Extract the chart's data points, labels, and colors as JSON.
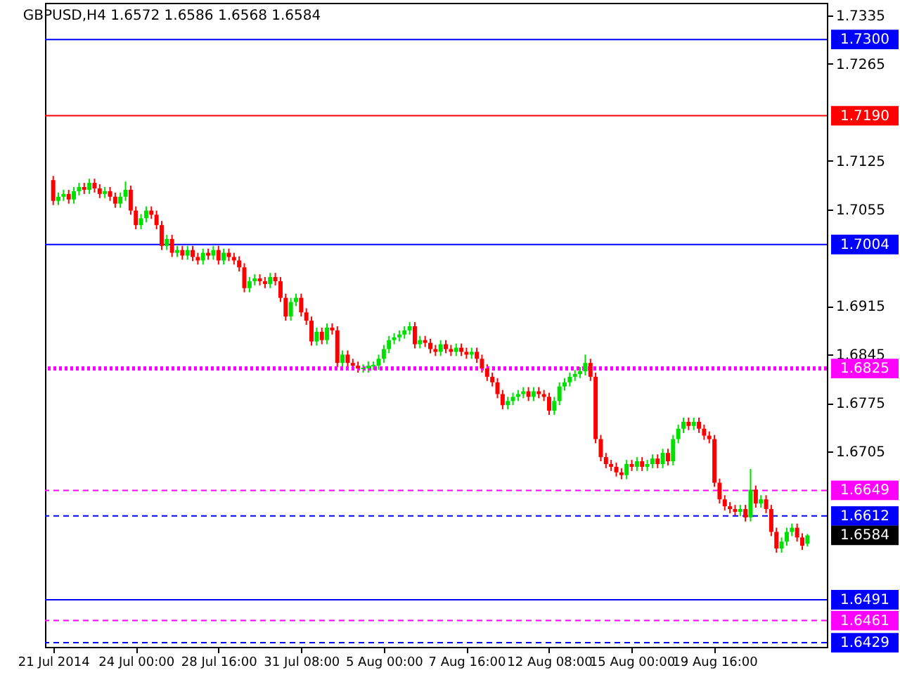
{
  "chart_data": {
    "type": "candlestick",
    "title": "GBPUSD,H4  1.6572 1.6586 1.6568 1.6584",
    "categories": [
      "21 Jul 2014",
      null,
      null,
      null,
      null,
      null,
      null,
      null,
      null,
      null,
      null,
      null,
      null,
      null,
      null,
      null,
      "24 Jul 00:00",
      null,
      null,
      null,
      null,
      null,
      null,
      null,
      null,
      null,
      null,
      null,
      null,
      null,
      null,
      null,
      "28 Jul 16:00",
      null,
      null,
      null,
      null,
      null,
      null,
      null,
      null,
      null,
      null,
      null,
      null,
      null,
      null,
      null,
      "31 Jul 08:00",
      null,
      null,
      null,
      null,
      null,
      null,
      null,
      null,
      null,
      null,
      null,
      null,
      null,
      null,
      null,
      "5 Aug 00:00",
      null,
      null,
      null,
      null,
      null,
      null,
      null,
      null,
      null,
      null,
      null,
      null,
      null,
      null,
      null,
      "7 Aug 16:00",
      null,
      null,
      null,
      null,
      null,
      null,
      null,
      null,
      null,
      null,
      null,
      null,
      null,
      null,
      null,
      "12 Aug 08:00",
      null,
      null,
      null,
      null,
      null,
      null,
      null,
      null,
      null,
      null,
      null,
      null,
      null,
      null,
      null,
      "15 Aug 00:00",
      null,
      null,
      null,
      null,
      null,
      null,
      null,
      null,
      null,
      null,
      null,
      null,
      null,
      null,
      null,
      "19 Aug 16:00",
      null,
      null,
      null,
      null,
      null,
      null,
      null,
      null,
      null,
      null,
      null,
      null,
      null,
      null,
      null,
      null,
      null,
      null
    ],
    "ohlc": [
      [
        1.7097,
        1.7103,
        1.7061,
        1.7067
      ],
      [
        1.7067,
        1.7079,
        1.7061,
        1.7073
      ],
      [
        1.7073,
        1.7083,
        1.7067,
        1.7077
      ],
      [
        1.7077,
        1.7083,
        1.7063,
        1.7069
      ],
      [
        1.7069,
        1.7087,
        1.7063,
        1.7081
      ],
      [
        1.7081,
        1.7093,
        1.7075,
        1.7087
      ],
      [
        1.7087,
        1.7093,
        1.7077,
        1.7083
      ],
      [
        1.7083,
        1.7099,
        1.7077,
        1.7093
      ],
      [
        1.7093,
        1.7099,
        1.7079,
        1.7085
      ],
      [
        1.7085,
        1.7091,
        1.7071,
        1.7077
      ],
      [
        1.7077,
        1.7087,
        1.7071,
        1.7081
      ],
      [
        1.7081,
        1.7087,
        1.7067,
        1.7073
      ],
      [
        1.7073,
        1.7079,
        1.7057,
        1.7063
      ],
      [
        1.7063,
        1.7079,
        1.7057,
        1.7073
      ],
      [
        1.7073,
        1.7095,
        1.7067,
        1.7083
      ],
      [
        1.7083,
        1.7089,
        1.7047,
        1.7053
      ],
      [
        1.7053,
        1.7059,
        1.7026,
        1.7032
      ],
      [
        1.7032,
        1.7048,
        1.7026,
        1.7042
      ],
      [
        1.7042,
        1.7059,
        1.7036,
        1.7053
      ],
      [
        1.7053,
        1.7059,
        1.7041,
        1.7047
      ],
      [
        1.7047,
        1.7053,
        1.7026,
        1.7032
      ],
      [
        1.7032,
        1.7038,
        1.6996,
        1.7002
      ],
      [
        1.7002,
        1.7018,
        1.6996,
        1.7012
      ],
      [
        1.7012,
        1.7018,
        1.6986,
        1.6992
      ],
      [
        1.6992,
        1.7002,
        1.6986,
        1.6996
      ],
      [
        1.6996,
        1.7002,
        1.6982,
        1.6988
      ],
      [
        1.6988,
        1.7002,
        1.6982,
        1.6996
      ],
      [
        1.6996,
        1.7002,
        1.698,
        1.6986
      ],
      [
        1.6986,
        1.6992,
        1.6975,
        1.6981
      ],
      [
        1.6981,
        1.6998,
        1.6975,
        1.6992
      ],
      [
        1.6992,
        1.6998,
        1.6982,
        1.6988
      ],
      [
        1.6988,
        1.7002,
        1.6982,
        1.6996
      ],
      [
        1.6996,
        1.7002,
        1.6975,
        1.6981
      ],
      [
        1.6981,
        1.6998,
        1.6975,
        1.6992
      ],
      [
        1.6992,
        1.6998,
        1.698,
        1.6986
      ],
      [
        1.6986,
        1.6992,
        1.6975,
        1.6981
      ],
      [
        1.6981,
        1.6987,
        1.6965,
        1.6971
      ],
      [
        1.6971,
        1.6977,
        1.6935,
        1.6941
      ],
      [
        1.6941,
        1.6957,
        1.6935,
        1.6951
      ],
      [
        1.6951,
        1.6961,
        1.6945,
        1.6955
      ],
      [
        1.6955,
        1.6961,
        1.6945,
        1.6951
      ],
      [
        1.6951,
        1.6957,
        1.6941,
        1.6947
      ],
      [
        1.6947,
        1.6963,
        1.6941,
        1.6957
      ],
      [
        1.6957,
        1.6963,
        1.6945,
        1.6951
      ],
      [
        1.6951,
        1.6957,
        1.6921,
        1.6927
      ],
      [
        1.6927,
        1.6933,
        1.6894,
        1.69
      ],
      [
        1.69,
        1.6927,
        1.6894,
        1.6921
      ],
      [
        1.6921,
        1.6933,
        1.6915,
        1.6927
      ],
      [
        1.6927,
        1.6933,
        1.69,
        1.6906
      ],
      [
        1.6906,
        1.6912,
        1.6888,
        1.6894
      ],
      [
        1.6894,
        1.69,
        1.6858,
        1.6864
      ],
      [
        1.6864,
        1.6884,
        1.6858,
        1.6878
      ],
      [
        1.6878,
        1.6884,
        1.686,
        1.6866
      ],
      [
        1.6866,
        1.689,
        1.686,
        1.6884
      ],
      [
        1.6884,
        1.689,
        1.6874,
        1.688
      ],
      [
        1.688,
        1.6886,
        1.6827,
        1.6833
      ],
      [
        1.6833,
        1.6851,
        1.6827,
        1.6845
      ],
      [
        1.6845,
        1.6851,
        1.6827,
        1.6833
      ],
      [
        1.6833,
        1.6839,
        1.6823,
        1.6829
      ],
      [
        1.6829,
        1.6835,
        1.6819,
        1.6825
      ],
      [
        1.6825,
        1.6831,
        1.6819,
        1.6825
      ],
      [
        1.6825,
        1.6835,
        1.6819,
        1.6829
      ],
      [
        1.6829,
        1.6835,
        1.6823,
        1.6829
      ],
      [
        1.6829,
        1.6845,
        1.6823,
        1.6839
      ],
      [
        1.6839,
        1.6859,
        1.6833,
        1.6853
      ],
      [
        1.6853,
        1.6872,
        1.6847,
        1.6866
      ],
      [
        1.6866,
        1.6876,
        1.686,
        1.687
      ],
      [
        1.687,
        1.688,
        1.6864,
        1.6874
      ],
      [
        1.6874,
        1.6886,
        1.6868,
        1.688
      ],
      [
        1.688,
        1.6892,
        1.6874,
        1.6886
      ],
      [
        1.6886,
        1.6892,
        1.6854,
        1.686
      ],
      [
        1.686,
        1.6872,
        1.6854,
        1.6866
      ],
      [
        1.6866,
        1.6872,
        1.6856,
        1.6862
      ],
      [
        1.6862,
        1.6868,
        1.6847,
        1.6853
      ],
      [
        1.6853,
        1.6859,
        1.6843,
        1.6849
      ],
      [
        1.6849,
        1.6866,
        1.6843,
        1.686
      ],
      [
        1.686,
        1.6866,
        1.6847,
        1.6853
      ],
      [
        1.6853,
        1.6859,
        1.6843,
        1.6849
      ],
      [
        1.6849,
        1.6861,
        1.6843,
        1.6855
      ],
      [
        1.6855,
        1.6861,
        1.6843,
        1.6849
      ],
      [
        1.6849,
        1.6855,
        1.6839,
        1.6845
      ],
      [
        1.6845,
        1.6855,
        1.6839,
        1.6849
      ],
      [
        1.6849,
        1.6855,
        1.6833,
        1.6839
      ],
      [
        1.6839,
        1.6845,
        1.6819,
        1.6825
      ],
      [
        1.6825,
        1.6831,
        1.6807,
        1.6813
      ],
      [
        1.6813,
        1.6819,
        1.6799,
        1.6805
      ],
      [
        1.6805,
        1.6811,
        1.6782,
        1.6788
      ],
      [
        1.6788,
        1.6794,
        1.6766,
        1.6772
      ],
      [
        1.6772,
        1.6784,
        1.6766,
        1.6778
      ],
      [
        1.6778,
        1.679,
        1.6772,
        1.6784
      ],
      [
        1.6784,
        1.6794,
        1.6778,
        1.6788
      ],
      [
        1.6788,
        1.6798,
        1.6782,
        1.6792
      ],
      [
        1.6792,
        1.6798,
        1.6778,
        1.6784
      ],
      [
        1.6784,
        1.6798,
        1.6778,
        1.6792
      ],
      [
        1.6792,
        1.6798,
        1.6782,
        1.6788
      ],
      [
        1.6788,
        1.6794,
        1.6778,
        1.6784
      ],
      [
        1.6784,
        1.679,
        1.6758,
        1.6764
      ],
      [
        1.6764,
        1.6784,
        1.6758,
        1.6778
      ],
      [
        1.6778,
        1.6805,
        1.6772,
        1.6799
      ],
      [
        1.6799,
        1.6811,
        1.6793,
        1.6805
      ],
      [
        1.6805,
        1.6819,
        1.6799,
        1.6813
      ],
      [
        1.6813,
        1.6823,
        1.6807,
        1.6817
      ],
      [
        1.6817,
        1.6827,
        1.6811,
        1.6821
      ],
      [
        1.6821,
        1.6845,
        1.6815,
        1.6833
      ],
      [
        1.6833,
        1.6839,
        1.6807,
        1.6813
      ],
      [
        1.6813,
        1.6819,
        1.6717,
        1.6723
      ],
      [
        1.6723,
        1.6729,
        1.6691,
        1.6697
      ],
      [
        1.6697,
        1.6703,
        1.6681,
        1.6687
      ],
      [
        1.6687,
        1.6693,
        1.6677,
        1.6683
      ],
      [
        1.6683,
        1.6689,
        1.6669,
        1.6675
      ],
      [
        1.6675,
        1.6681,
        1.6665,
        1.6671
      ],
      [
        1.6671,
        1.6693,
        1.6665,
        1.6687
      ],
      [
        1.6687,
        1.6693,
        1.6677,
        1.6683
      ],
      [
        1.6683,
        1.6697,
        1.6677,
        1.6691
      ],
      [
        1.6691,
        1.6697,
        1.6677,
        1.6683
      ],
      [
        1.6683,
        1.6693,
        1.6677,
        1.6687
      ],
      [
        1.6687,
        1.6701,
        1.6681,
        1.6695
      ],
      [
        1.6695,
        1.6701,
        1.6681,
        1.6687
      ],
      [
        1.6687,
        1.6709,
        1.6681,
        1.6703
      ],
      [
        1.6703,
        1.6709,
        1.6685,
        1.6691
      ],
      [
        1.6691,
        1.6729,
        1.6685,
        1.6723
      ],
      [
        1.6723,
        1.6744,
        1.6717,
        1.6738
      ],
      [
        1.6738,
        1.6754,
        1.6732,
        1.6748
      ],
      [
        1.6748,
        1.6754,
        1.6736,
        1.6742
      ],
      [
        1.6742,
        1.6754,
        1.6736,
        1.6748
      ],
      [
        1.6748,
        1.6754,
        1.6732,
        1.6738
      ],
      [
        1.6738,
        1.6744,
        1.6722,
        1.6728
      ],
      [
        1.6728,
        1.6734,
        1.6717,
        1.6723
      ],
      [
        1.6723,
        1.6729,
        1.6654,
        1.666
      ],
      [
        1.666,
        1.6666,
        1.663,
        1.6636
      ],
      [
        1.6636,
        1.6642,
        1.662,
        1.6626
      ],
      [
        1.6626,
        1.6632,
        1.6616,
        1.6622
      ],
      [
        1.6622,
        1.6628,
        1.6612,
        1.6618
      ],
      [
        1.6618,
        1.6628,
        1.6612,
        1.6622
      ],
      [
        1.6622,
        1.6628,
        1.6604,
        1.661
      ],
      [
        1.661,
        1.668,
        1.6604,
        1.665
      ],
      [
        1.665,
        1.6656,
        1.6624,
        1.663
      ],
      [
        1.663,
        1.6642,
        1.6624,
        1.6636
      ],
      [
        1.6636,
        1.6642,
        1.6616,
        1.6622
      ],
      [
        1.6622,
        1.6628,
        1.6583,
        1.6589
      ],
      [
        1.6589,
        1.6595,
        1.6559,
        1.6565
      ],
      [
        1.6565,
        1.6581,
        1.6559,
        1.6575
      ],
      [
        1.6575,
        1.6595,
        1.6569,
        1.6589
      ],
      [
        1.6589,
        1.6601,
        1.6583,
        1.6595
      ],
      [
        1.6595,
        1.6601,
        1.6575,
        1.6581
      ],
      [
        1.6581,
        1.6587,
        1.6563,
        1.6569
      ],
      [
        1.6572,
        1.6586,
        1.6568,
        1.6584
      ]
    ],
    "ylim": [
      1.6423,
      1.7353
    ],
    "yticks": [
      1.6705,
      1.6775,
      1.6845,
      1.6915,
      1.7055,
      1.7125,
      1.7265,
      1.7335
    ],
    "ref_lines": [
      {
        "axis": "y",
        "value": 1.73,
        "label": "1.7300",
        "color": "#0000ff",
        "line_style": "solid"
      },
      {
        "axis": "y",
        "value": 1.719,
        "label": "1.7190",
        "color": "#ff0000",
        "line_style": "solid"
      },
      {
        "axis": "y",
        "value": 1.7004,
        "label": "1.7004",
        "color": "#0000ff",
        "line_style": "solid"
      },
      {
        "axis": "y",
        "value": 1.6825,
        "label": "1.6825",
        "color": "#ff00ff",
        "line_style": "dotted"
      },
      {
        "axis": "y",
        "value": 1.6649,
        "label": "1.6649",
        "color": "#ff00ff",
        "line_style": "dashed"
      },
      {
        "axis": "y",
        "value": 1.6612,
        "label": "1.6612",
        "color": "#0000ff",
        "line_style": "dashed"
      },
      {
        "axis": "y",
        "value": 1.6491,
        "label": "1.6491",
        "color": "#0000ff",
        "line_style": "solid"
      },
      {
        "axis": "y",
        "value": 1.6461,
        "label": "1.6461",
        "color": "#ff00ff",
        "line_style": "dashed"
      },
      {
        "axis": "y",
        "value": 1.6429,
        "label": "1.6429",
        "color": "#0000ff",
        "line_style": "dashed"
      }
    ],
    "annotations": [
      "1.6584"
    ],
    "grid": false
  }
}
